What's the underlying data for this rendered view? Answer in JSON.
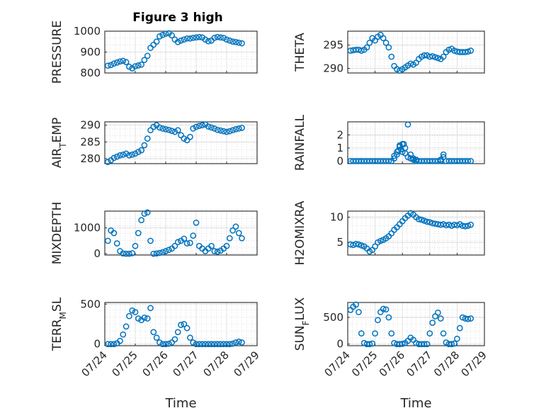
{
  "figure": {
    "title": "Figure 3 high"
  },
  "chart_data": [
    {
      "type": "scatter",
      "id": "pressure",
      "title": "Figure 3 high",
      "ylabel": "PRESSURE",
      "xlabel": "",
      "ylim": [
        800,
        1000
      ],
      "yticks": [
        "800",
        "900",
        "1000"
      ],
      "ytickvals": [
        800,
        900,
        1000
      ],
      "xlim": [
        0,
        5
      ],
      "grid": true,
      "x": [
        0.1,
        0.2,
        0.3,
        0.4,
        0.5,
        0.6,
        0.7,
        0.8,
        0.9,
        1.0,
        1.1,
        1.2,
        1.3,
        1.4,
        1.5,
        1.6,
        1.7,
        1.8,
        1.9,
        2.0,
        2.1,
        2.2,
        2.3,
        2.4,
        2.5,
        2.6,
        2.7,
        2.8,
        2.9,
        3.0,
        3.1,
        3.2,
        3.3,
        3.4,
        3.5,
        3.6,
        3.7,
        3.8,
        3.9,
        4.0,
        4.1,
        4.2,
        4.3,
        4.4,
        4.5
      ],
      "y": [
        835,
        838,
        845,
        850,
        855,
        858,
        852,
        830,
        822,
        832,
        836,
        840,
        862,
        882,
        920,
        935,
        950,
        975,
        982,
        988,
        990,
        980,
        960,
        948,
        955,
        960,
        965,
        965,
        968,
        970,
        972,
        970,
        960,
        952,
        955,
        968,
        972,
        970,
        968,
        960,
        955,
        950,
        948,
        945,
        942
      ]
    },
    {
      "type": "scatter",
      "id": "theta",
      "ylabel": "THETA",
      "xlabel": "",
      "ylim": [
        289,
        298
      ],
      "yticks": [
        "290",
        "295"
      ],
      "ytickvals": [
        290,
        295
      ],
      "xlim": [
        0,
        5
      ],
      "grid": true,
      "x": [
        0.1,
        0.2,
        0.3,
        0.4,
        0.5,
        0.6,
        0.7,
        0.8,
        0.9,
        1.0,
        1.1,
        1.2,
        1.3,
        1.4,
        1.5,
        1.6,
        1.7,
        1.8,
        1.9,
        2.0,
        2.1,
        2.2,
        2.3,
        2.4,
        2.5,
        2.6,
        2.7,
        2.8,
        2.9,
        3.0,
        3.1,
        3.2,
        3.3,
        3.4,
        3.5,
        3.6,
        3.7,
        3.8,
        3.9,
        4.0,
        4.1,
        4.2,
        4.3,
        4.4,
        4.5
      ],
      "y": [
        293.8,
        293.9,
        294.0,
        294.0,
        293.8,
        294.0,
        294.5,
        295.5,
        296.5,
        296.0,
        296.8,
        297.2,
        296.5,
        295.5,
        294.5,
        292.5,
        290.5,
        289.8,
        289.5,
        289.8,
        290.2,
        290.6,
        291.0,
        290.8,
        291.2,
        292.0,
        292.5,
        292.8,
        292.8,
        292.5,
        292.6,
        292.4,
        292.2,
        292.0,
        292.5,
        293.5,
        294.0,
        294.2,
        293.8,
        293.6,
        293.5,
        293.5,
        293.5,
        293.6,
        293.8
      ]
    },
    {
      "type": "scatter",
      "id": "air_temp",
      "ylabel": "AIR",
      "ylabel_sub": "T",
      "ylabel_tail": "EMP",
      "xlabel": "",
      "ylim": [
        278.5,
        291
      ],
      "yticks": [
        "280",
        "285",
        "290"
      ],
      "ytickvals": [
        280,
        285,
        290
      ],
      "xlim": [
        0,
        5
      ],
      "grid": true,
      "x": [
        0.1,
        0.2,
        0.3,
        0.4,
        0.5,
        0.6,
        0.7,
        0.8,
        0.9,
        1.0,
        1.1,
        1.2,
        1.3,
        1.4,
        1.5,
        1.6,
        1.7,
        1.8,
        1.9,
        2.0,
        2.1,
        2.2,
        2.3,
        2.4,
        2.5,
        2.6,
        2.7,
        2.8,
        2.9,
        3.0,
        3.1,
        3.2,
        3.3,
        3.4,
        3.5,
        3.6,
        3.7,
        3.8,
        3.9,
        4.0,
        4.1,
        4.2,
        4.3,
        4.4,
        4.5
      ],
      "y": [
        279.0,
        279.5,
        280.2,
        280.6,
        281.0,
        281.2,
        281.5,
        281.0,
        281.2,
        281.5,
        282.0,
        282.5,
        284.0,
        286.0,
        288.5,
        289.5,
        290.0,
        289.3,
        289.0,
        288.8,
        288.6,
        288.3,
        288.0,
        288.5,
        287.0,
        286.0,
        285.5,
        286.5,
        289.0,
        289.5,
        289.8,
        290.0,
        290.2,
        289.6,
        289.3,
        289.0,
        288.6,
        288.4,
        288.2,
        288.0,
        288.2,
        288.5,
        288.8,
        289.0,
        289.2
      ]
    },
    {
      "type": "scatter",
      "id": "rainfall",
      "ylabel": "RAINFALL",
      "xlabel": "",
      "ylim": [
        -0.2,
        3.0
      ],
      "yticks": [
        "0",
        "1",
        "2"
      ],
      "ytickvals": [
        0,
        1,
        2
      ],
      "xlim": [
        0,
        5
      ],
      "grid": true,
      "x": [
        0.1,
        0.2,
        0.3,
        0.4,
        0.5,
        0.6,
        0.7,
        0.8,
        0.9,
        1.0,
        1.1,
        1.2,
        1.3,
        1.4,
        1.5,
        1.6,
        1.7,
        1.8,
        1.9,
        2.0,
        2.1,
        2.2,
        2.3,
        2.4,
        2.5,
        2.6,
        2.7,
        2.8,
        2.9,
        3.0,
        3.1,
        3.2,
        3.3,
        3.4,
        3.5,
        3.6,
        3.7,
        3.8,
        3.9,
        4.0,
        4.1,
        4.2,
        4.3,
        4.4,
        4.5,
        1.7,
        1.8,
        1.85,
        1.9,
        1.95,
        2.0,
        2.05,
        2.1,
        2.2,
        2.3,
        2.4,
        2.5,
        3.4,
        3.5
      ],
      "y": [
        0,
        0,
        0,
        0,
        0,
        0,
        0,
        0,
        0,
        0,
        0,
        0,
        0,
        0,
        0,
        0,
        0.4,
        0.7,
        1.2,
        1.3,
        1.0,
        2.8,
        0.5,
        0.2,
        0,
        0,
        0,
        0,
        0,
        0,
        0,
        0,
        0,
        0,
        0.3,
        0,
        0,
        0,
        0,
        0,
        0,
        0,
        0,
        0,
        0,
        0.2,
        0.5,
        0.8,
        1.1,
        0.9,
        0.7,
        1.3,
        0.6,
        0.3,
        0.2,
        0.1,
        0.1,
        0.1,
        0.5
      ]
    },
    {
      "type": "scatter",
      "id": "mixdepth",
      "ylabel": "MIXDEPTH",
      "xlabel": "",
      "ylim": [
        -50,
        1650
      ],
      "yticks": [
        "0",
        "1000"
      ],
      "ytickvals": [
        0,
        1000
      ],
      "xlim": [
        0,
        5
      ],
      "grid": true,
      "x": [
        0.1,
        0.2,
        0.3,
        0.4,
        0.5,
        0.6,
        0.7,
        0.8,
        0.9,
        1.0,
        1.1,
        1.2,
        1.3,
        1.4,
        1.5,
        1.6,
        1.7,
        1.8,
        1.9,
        2.0,
        2.1,
        2.2,
        2.3,
        2.4,
        2.5,
        2.6,
        2.7,
        2.8,
        2.9,
        3.0,
        3.1,
        3.2,
        3.3,
        3.4,
        3.5,
        3.6,
        3.7,
        3.8,
        3.9,
        4.0,
        4.1,
        4.2,
        4.3,
        4.4,
        4.5
      ],
      "y": [
        500,
        900,
        800,
        400,
        100,
        10,
        0,
        0,
        20,
        300,
        800,
        1300,
        1550,
        1600,
        500,
        0,
        10,
        30,
        60,
        100,
        150,
        200,
        300,
        450,
        500,
        580,
        400,
        420,
        700,
        1200,
        300,
        200,
        100,
        200,
        300,
        100,
        80,
        120,
        200,
        300,
        600,
        900,
        1050,
        800,
        600
      ]
    },
    {
      "type": "scatter",
      "id": "h2omixra",
      "ylabel": "H2OMIXRA",
      "xlabel": "",
      "ylim": [
        2.5,
        11.2
      ],
      "yticks": [
        "5",
        "10"
      ],
      "ytickvals": [
        5,
        10
      ],
      "xlim": [
        0,
        5
      ],
      "grid": true,
      "x": [
        0.1,
        0.2,
        0.3,
        0.4,
        0.5,
        0.6,
        0.7,
        0.8,
        0.9,
        1.0,
        1.1,
        1.2,
        1.3,
        1.4,
        1.5,
        1.6,
        1.7,
        1.8,
        1.9,
        2.0,
        2.1,
        2.2,
        2.3,
        2.4,
        2.5,
        2.6,
        2.7,
        2.8,
        2.9,
        3.0,
        3.1,
        3.2,
        3.3,
        3.4,
        3.5,
        3.6,
        3.7,
        3.8,
        3.9,
        4.0,
        4.1,
        4.2,
        4.3,
        4.4,
        4.5
      ],
      "y": [
        4.6,
        4.5,
        4.7,
        4.6,
        4.4,
        4.2,
        3.8,
        3.2,
        3.5,
        4.2,
        5.0,
        5.3,
        5.5,
        5.8,
        6.2,
        6.8,
        7.5,
        8.0,
        8.6,
        9.2,
        9.8,
        10.3,
        10.8,
        10.5,
        10.0,
        9.6,
        9.5,
        9.3,
        9.1,
        9.0,
        8.8,
        8.7,
        8.6,
        8.5,
        8.6,
        8.4,
        8.5,
        8.3,
        8.5,
        8.4,
        8.6,
        8.3,
        8.2,
        8.3,
        8.5
      ]
    },
    {
      "type": "scatter",
      "id": "terr_msl",
      "ylabel": "TERR",
      "ylabel_sub": "M",
      "ylabel_tail": "SL",
      "xlabel": "Time",
      "ylim": [
        -20,
        520
      ],
      "yticks": [
        "0",
        "500"
      ],
      "ytickvals": [
        0,
        500
      ],
      "xlim": [
        0,
        5
      ],
      "xticks": [
        "07/24",
        "07/25",
        "07/26",
        "07/27",
        "07/28",
        "07/29"
      ],
      "grid": true,
      "x": [
        0.1,
        0.2,
        0.3,
        0.4,
        0.5,
        0.6,
        0.7,
        0.8,
        0.9,
        1.0,
        1.1,
        1.2,
        1.3,
        1.4,
        1.5,
        1.6,
        1.7,
        1.8,
        1.9,
        2.0,
        2.1,
        2.2,
        2.3,
        2.4,
        2.5,
        2.6,
        2.7,
        2.8,
        2.9,
        3.0,
        3.1,
        3.2,
        3.3,
        3.4,
        3.5,
        3.6,
        3.7,
        3.8,
        3.9,
        4.0,
        4.1,
        4.2,
        4.3,
        4.4,
        4.5
      ],
      "y": [
        0,
        0,
        0,
        10,
        40,
        120,
        220,
        350,
        420,
        400,
        320,
        300,
        330,
        320,
        450,
        150,
        80,
        20,
        0,
        0,
        5,
        20,
        60,
        150,
        240,
        250,
        200,
        80,
        20,
        0,
        0,
        0,
        0,
        0,
        0,
        0,
        0,
        0,
        0,
        0,
        0,
        5,
        20,
        30,
        20
      ]
    },
    {
      "type": "scatter",
      "id": "sun_flux",
      "ylabel": "SUN",
      "ylabel_sub": "F",
      "ylabel_tail": "LUX",
      "xlabel": "Time",
      "ylim": [
        -30,
        780
      ],
      "yticks": [
        "0",
        "500"
      ],
      "ytickvals": [
        0,
        500
      ],
      "xlim": [
        0,
        5
      ],
      "xticks": [
        "07/24",
        "07/25",
        "07/26",
        "07/27",
        "07/28",
        "07/29"
      ],
      "grid": true,
      "x": [
        0.1,
        0.2,
        0.3,
        0.4,
        0.5,
        0.6,
        0.7,
        0.8,
        0.9,
        1.0,
        1.1,
        1.2,
        1.3,
        1.4,
        1.5,
        1.6,
        1.7,
        1.8,
        1.9,
        2.0,
        2.1,
        2.2,
        2.3,
        2.4,
        2.5,
        2.6,
        2.7,
        2.8,
        2.9,
        3.0,
        3.1,
        3.2,
        3.3,
        3.4,
        3.5,
        3.6,
        3.7,
        3.8,
        3.9,
        4.0,
        4.1,
        4.2,
        4.3,
        4.4,
        4.5
      ],
      "y": [
        640,
        700,
        740,
        600,
        200,
        20,
        0,
        0,
        10,
        200,
        450,
        600,
        660,
        650,
        500,
        200,
        20,
        0,
        0,
        5,
        20,
        60,
        120,
        80,
        20,
        0,
        0,
        0,
        0,
        200,
        400,
        520,
        590,
        480,
        200,
        30,
        0,
        0,
        10,
        100,
        300,
        500,
        480,
        470,
        480
      ]
    }
  ]
}
